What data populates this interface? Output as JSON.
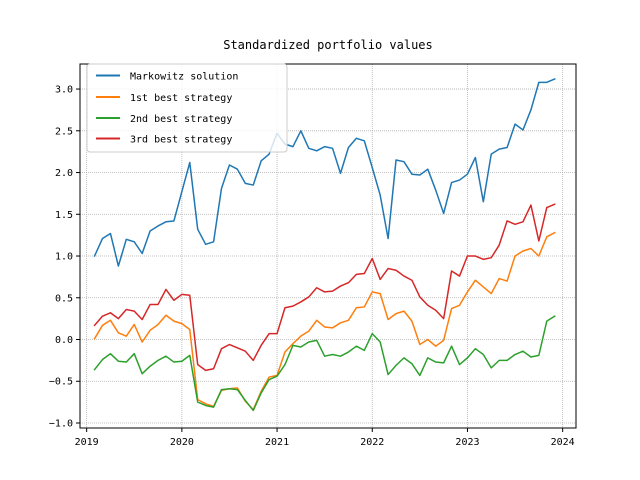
{
  "chart_data": {
    "type": "line",
    "title": "Standardized portfolio values",
    "xlabel": "",
    "ylabel": "",
    "xlim": [
      2018.93,
      2024.14
    ],
    "ylim": [
      -1.06,
      3.3
    ],
    "xticks": [
      2019,
      2020,
      2021,
      2022,
      2023,
      2024
    ],
    "xtick_labels": [
      "2019",
      "2020",
      "2021",
      "2022",
      "2023",
      "2024"
    ],
    "yticks": [
      -1.0,
      -0.5,
      0.0,
      0.5,
      1.0,
      1.5,
      2.0,
      2.5,
      3.0
    ],
    "ytick_labels": [
      "−1.0",
      "−0.5",
      "0.0",
      "0.5",
      "1.0",
      "1.5",
      "2.0",
      "2.5",
      "3.0"
    ],
    "grid": true,
    "legend_position": "top-left",
    "x_start": 2019.083,
    "x_step_months": 1,
    "series": [
      {
        "name": "Markowitz solution",
        "color": "#1f77b4",
        "values": [
          1.0,
          1.21,
          1.27,
          0.88,
          1.2,
          1.17,
          1.03,
          1.3,
          1.36,
          1.41,
          1.42,
          1.77,
          2.12,
          1.32,
          1.14,
          1.17,
          1.81,
          2.09,
          2.04,
          1.87,
          1.85,
          2.14,
          2.22,
          2.47,
          2.34,
          2.31,
          2.5,
          2.29,
          2.26,
          2.31,
          2.29,
          1.99,
          2.3,
          2.41,
          2.38,
          2.06,
          1.73,
          1.21,
          2.15,
          2.13,
          1.98,
          1.97,
          2.04,
          1.79,
          1.51,
          1.88,
          1.91,
          1.98,
          2.18,
          1.65,
          2.22,
          2.28,
          2.3,
          2.58,
          2.51,
          2.75,
          3.08,
          3.08,
          3.12
        ]
      },
      {
        "name": "1st best strategy",
        "color": "#ff7f0e",
        "values": [
          0.01,
          0.17,
          0.23,
          0.08,
          0.04,
          0.18,
          -0.03,
          0.11,
          0.18,
          0.29,
          0.22,
          0.19,
          0.12,
          -0.72,
          -0.77,
          -0.8,
          -0.61,
          -0.59,
          -0.58,
          -0.74,
          -0.84,
          -0.62,
          -0.45,
          -0.43,
          -0.15,
          -0.05,
          0.04,
          0.1,
          0.23,
          0.15,
          0.14,
          0.2,
          0.23,
          0.38,
          0.39,
          0.57,
          0.55,
          0.24,
          0.31,
          0.34,
          0.22,
          -0.06,
          0.0,
          -0.08,
          -0.01,
          0.37,
          0.41,
          0.57,
          0.71,
          0.63,
          0.55,
          0.73,
          0.7,
          1.0,
          1.06,
          1.09,
          1.0,
          1.23,
          1.28
        ]
      },
      {
        "name": "2nd best strategy",
        "color": "#2ca02c",
        "values": [
          -0.36,
          -0.24,
          -0.17,
          -0.26,
          -0.27,
          -0.17,
          -0.41,
          -0.32,
          -0.25,
          -0.2,
          -0.27,
          -0.26,
          -0.19,
          -0.75,
          -0.79,
          -0.81,
          -0.6,
          -0.59,
          -0.6,
          -0.73,
          -0.85,
          -0.64,
          -0.48,
          -0.44,
          -0.3,
          -0.07,
          -0.09,
          -0.03,
          -0.01,
          -0.2,
          -0.18,
          -0.2,
          -0.15,
          -0.08,
          -0.13,
          0.07,
          -0.03,
          -0.42,
          -0.31,
          -0.22,
          -0.29,
          -0.43,
          -0.22,
          -0.27,
          -0.28,
          -0.08,
          -0.3,
          -0.22,
          -0.11,
          -0.18,
          -0.34,
          -0.25,
          -0.25,
          -0.18,
          -0.14,
          -0.21,
          -0.19,
          0.22,
          0.28
        ]
      },
      {
        "name": "3rd best strategy",
        "color": "#d62728",
        "values": [
          0.17,
          0.28,
          0.32,
          0.25,
          0.36,
          0.34,
          0.24,
          0.42,
          0.42,
          0.6,
          0.47,
          0.54,
          0.53,
          -0.3,
          -0.37,
          -0.35,
          -0.11,
          -0.06,
          -0.1,
          -0.14,
          -0.25,
          -0.07,
          0.07,
          0.07,
          0.38,
          0.4,
          0.45,
          0.51,
          0.62,
          0.57,
          0.58,
          0.64,
          0.68,
          0.78,
          0.79,
          0.97,
          0.72,
          0.85,
          0.83,
          0.76,
          0.71,
          0.51,
          0.41,
          0.35,
          0.25,
          0.82,
          0.76,
          1.0,
          1.0,
          0.96,
          0.98,
          1.13,
          1.42,
          1.38,
          1.41,
          1.61,
          1.18,
          1.58,
          1.62
        ]
      }
    ]
  }
}
